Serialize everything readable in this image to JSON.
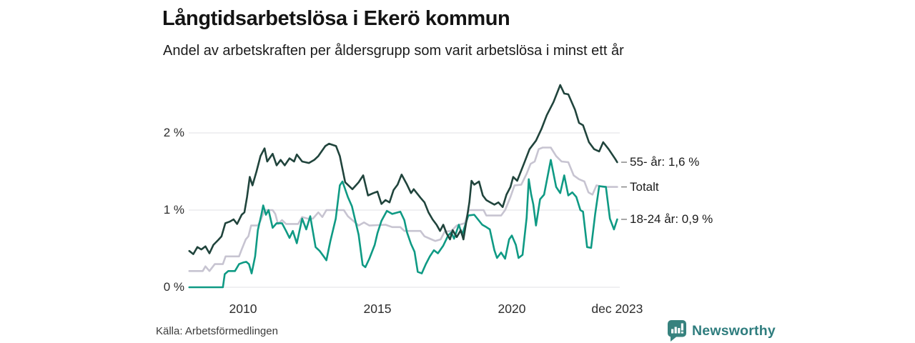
{
  "header": {
    "title": "Långtidsarbetslösa i Ekerö kommun",
    "subtitle": "Andel av arbetskraften per åldersgrupp som varit arbetslösa i minst ett år"
  },
  "footer": {
    "source": "Källa: Arbetsförmedlingen",
    "brand": "Newsworthy",
    "brand_color": "#2f7d7e",
    "brand_icon": "newsworthy-speech-bubble-bar-chart"
  },
  "chart_data": {
    "type": "line",
    "title": "Långtidsarbetslösa i Ekerö kommun",
    "subtitle": "Andel av arbetskraften per åldersgrupp som varit arbetslösa i minst ett år",
    "xlabel": "",
    "ylabel": "",
    "x_unit": "year (monthly data)",
    "y_unit": "percent of labour force",
    "x_range": [
      2008.0,
      2023.92
    ],
    "ylim": [
      0,
      2.7
    ],
    "grid": "horizontal",
    "grid_color": "#e6e6e9",
    "end_tick_color": "#808080",
    "legend_position": "right-edge-labels",
    "yticks": [
      {
        "value": 0,
        "label": "0 %"
      },
      {
        "value": 1,
        "label": "1 %"
      },
      {
        "value": 2,
        "label": "2 %"
      }
    ],
    "xticks": [
      {
        "value": 2010,
        "label": "2010"
      },
      {
        "value": 2015,
        "label": "2015"
      },
      {
        "value": 2020,
        "label": "2020"
      },
      {
        "value": 2023.92,
        "label": "dec 2023"
      }
    ],
    "series": [
      {
        "id": "55-ar",
        "name": "55- år",
        "end_label": "55- år: 1,6 %",
        "end_value": 1.6,
        "color": "#20443c",
        "z": 3,
        "points": [
          [
            2008.0,
            0.47
          ],
          [
            2008.15,
            0.43
          ],
          [
            2008.3,
            0.52
          ],
          [
            2008.45,
            0.49
          ],
          [
            2008.6,
            0.53
          ],
          [
            2008.75,
            0.44
          ],
          [
            2008.9,
            0.55
          ],
          [
            2009.07,
            0.61
          ],
          [
            2009.2,
            0.66
          ],
          [
            2009.34,
            0.83
          ],
          [
            2009.5,
            0.85
          ],
          [
            2009.65,
            0.88
          ],
          [
            2009.78,
            0.82
          ],
          [
            2009.95,
            0.94
          ],
          [
            2010.05,
            0.97
          ],
          [
            2010.15,
            1.17
          ],
          [
            2010.25,
            1.43
          ],
          [
            2010.35,
            1.32
          ],
          [
            2010.5,
            1.5
          ],
          [
            2010.65,
            1.7
          ],
          [
            2010.8,
            1.8
          ],
          [
            2010.9,
            1.63
          ],
          [
            2011.1,
            1.73
          ],
          [
            2011.25,
            1.58
          ],
          [
            2011.4,
            1.65
          ],
          [
            2011.55,
            1.58
          ],
          [
            2011.73,
            1.67
          ],
          [
            2011.9,
            1.63
          ],
          [
            2012.0,
            1.72
          ],
          [
            2012.2,
            1.63
          ],
          [
            2012.45,
            1.61
          ],
          [
            2012.65,
            1.65
          ],
          [
            2012.8,
            1.7
          ],
          [
            2013.06,
            1.83
          ],
          [
            2013.2,
            1.86
          ],
          [
            2013.46,
            1.83
          ],
          [
            2013.6,
            1.7
          ],
          [
            2013.8,
            1.36
          ],
          [
            2014.07,
            1.27
          ],
          [
            2014.3,
            1.36
          ],
          [
            2014.47,
            1.45
          ],
          [
            2014.65,
            1.19
          ],
          [
            2014.85,
            1.22
          ],
          [
            2015.0,
            1.24
          ],
          [
            2015.15,
            1.08
          ],
          [
            2015.3,
            1.13
          ],
          [
            2015.45,
            1.1
          ],
          [
            2015.6,
            1.26
          ],
          [
            2015.75,
            1.33
          ],
          [
            2015.9,
            1.46
          ],
          [
            2016.1,
            1.33
          ],
          [
            2016.25,
            1.22
          ],
          [
            2016.35,
            1.27
          ],
          [
            2016.6,
            1.16
          ],
          [
            2016.75,
            1.1
          ],
          [
            2016.9,
            0.97
          ],
          [
            2017.05,
            0.88
          ],
          [
            2017.2,
            0.81
          ],
          [
            2017.33,
            0.73
          ],
          [
            2017.45,
            0.81
          ],
          [
            2017.57,
            0.7
          ],
          [
            2017.7,
            0.62
          ],
          [
            2017.8,
            0.74
          ],
          [
            2017.95,
            0.65
          ],
          [
            2018.1,
            0.74
          ],
          [
            2018.2,
            0.62
          ],
          [
            2018.33,
            0.9
          ],
          [
            2018.42,
            1.1
          ],
          [
            2018.5,
            1.38
          ],
          [
            2018.6,
            1.33
          ],
          [
            2018.78,
            1.37
          ],
          [
            2018.92,
            1.19
          ],
          [
            2019.05,
            1.13
          ],
          [
            2019.2,
            1.1
          ],
          [
            2019.35,
            1.07
          ],
          [
            2019.5,
            1.1
          ],
          [
            2019.66,
            1.04
          ],
          [
            2019.8,
            1.2
          ],
          [
            2019.95,
            1.3
          ],
          [
            2020.05,
            1.43
          ],
          [
            2020.2,
            1.38
          ],
          [
            2020.45,
            1.6
          ],
          [
            2020.66,
            1.79
          ],
          [
            2020.9,
            1.9
          ],
          [
            2021.1,
            2.05
          ],
          [
            2021.3,
            2.23
          ],
          [
            2021.55,
            2.4
          ],
          [
            2021.8,
            2.62
          ],
          [
            2021.95,
            2.51
          ],
          [
            2022.1,
            2.5
          ],
          [
            2022.35,
            2.3
          ],
          [
            2022.5,
            2.13
          ],
          [
            2022.65,
            2.1
          ],
          [
            2022.87,
            1.88
          ],
          [
            2023.06,
            1.79
          ],
          [
            2023.25,
            1.76
          ],
          [
            2023.4,
            1.88
          ],
          [
            2023.6,
            1.79
          ],
          [
            2023.85,
            1.66
          ],
          [
            2023.92,
            1.62
          ]
        ]
      },
      {
        "id": "totalt",
        "name": "Totalt",
        "end_label": "Totalt",
        "end_value": 1.3,
        "color": "#c7c4d1",
        "z": 1,
        "points": [
          [
            2008.0,
            0.21
          ],
          [
            2008.3,
            0.21
          ],
          [
            2008.5,
            0.21
          ],
          [
            2008.6,
            0.27
          ],
          [
            2008.75,
            0.21
          ],
          [
            2008.95,
            0.3
          ],
          [
            2009.25,
            0.3
          ],
          [
            2009.35,
            0.4
          ],
          [
            2009.85,
            0.4
          ],
          [
            2009.95,
            0.49
          ],
          [
            2010.1,
            0.62
          ],
          [
            2010.2,
            0.66
          ],
          [
            2010.3,
            0.8
          ],
          [
            2010.55,
            0.8
          ],
          [
            2010.65,
            0.86
          ],
          [
            2010.8,
            1.0
          ],
          [
            2011.1,
            1.0
          ],
          [
            2011.2,
            0.95
          ],
          [
            2011.3,
            0.82
          ],
          [
            2011.45,
            0.87
          ],
          [
            2011.6,
            0.82
          ],
          [
            2012.05,
            0.82
          ],
          [
            2012.2,
            0.91
          ],
          [
            2012.4,
            0.89
          ],
          [
            2012.6,
            0.89
          ],
          [
            2012.8,
            0.97
          ],
          [
            2012.95,
            0.91
          ],
          [
            2013.1,
            1.0
          ],
          [
            2013.75,
            1.0
          ],
          [
            2013.9,
            0.92
          ],
          [
            2014.1,
            0.86
          ],
          [
            2014.3,
            0.8
          ],
          [
            2014.5,
            0.84
          ],
          [
            2014.7,
            0.8
          ],
          [
            2015.3,
            0.81
          ],
          [
            2015.55,
            0.78
          ],
          [
            2015.85,
            0.78
          ],
          [
            2016.0,
            0.73
          ],
          [
            2016.6,
            0.73
          ],
          [
            2016.75,
            0.66
          ],
          [
            2016.95,
            0.63
          ],
          [
            2017.15,
            0.6
          ],
          [
            2017.35,
            0.62
          ],
          [
            2017.5,
            0.72
          ],
          [
            2017.75,
            0.73
          ],
          [
            2017.95,
            0.8
          ],
          [
            2018.25,
            0.83
          ],
          [
            2018.4,
            1.0
          ],
          [
            2018.95,
            1.0
          ],
          [
            2019.05,
            0.93
          ],
          [
            2019.6,
            0.93
          ],
          [
            2019.75,
            1.0
          ],
          [
            2019.95,
            1.17
          ],
          [
            2020.1,
            1.32
          ],
          [
            2020.35,
            1.33
          ],
          [
            2020.55,
            1.47
          ],
          [
            2020.7,
            1.6
          ],
          [
            2020.85,
            1.63
          ],
          [
            2021.0,
            1.79
          ],
          [
            2021.15,
            1.81
          ],
          [
            2021.45,
            1.81
          ],
          [
            2021.65,
            1.7
          ],
          [
            2021.85,
            1.63
          ],
          [
            2022.1,
            1.62
          ],
          [
            2022.3,
            1.45
          ],
          [
            2022.5,
            1.4
          ],
          [
            2022.7,
            1.37
          ],
          [
            2022.85,
            1.23
          ],
          [
            2023.0,
            1.2
          ],
          [
            2023.15,
            1.32
          ],
          [
            2023.4,
            1.3
          ],
          [
            2023.92,
            1.3
          ]
        ]
      },
      {
        "id": "18-24-ar",
        "name": "18-24 år",
        "end_label": "18-24 år: 0,9 %",
        "end_value": 0.9,
        "color": "#0f9a84",
        "z": 2,
        "points": [
          [
            2008.0,
            0.0
          ],
          [
            2009.25,
            0.0
          ],
          [
            2009.32,
            0.17
          ],
          [
            2009.45,
            0.21
          ],
          [
            2009.7,
            0.21
          ],
          [
            2009.85,
            0.3
          ],
          [
            2010.0,
            0.32
          ],
          [
            2010.12,
            0.33
          ],
          [
            2010.22,
            0.3
          ],
          [
            2010.32,
            0.18
          ],
          [
            2010.45,
            0.4
          ],
          [
            2010.55,
            0.74
          ],
          [
            2010.68,
            0.94
          ],
          [
            2010.75,
            1.06
          ],
          [
            2010.85,
            0.94
          ],
          [
            2010.95,
            1.0
          ],
          [
            2011.1,
            0.77
          ],
          [
            2011.25,
            0.83
          ],
          [
            2011.45,
            0.83
          ],
          [
            2011.6,
            0.73
          ],
          [
            2011.73,
            0.64
          ],
          [
            2011.85,
            0.73
          ],
          [
            2012.0,
            0.57
          ],
          [
            2012.2,
            0.89
          ],
          [
            2012.35,
            0.75
          ],
          [
            2012.5,
            0.92
          ],
          [
            2012.7,
            0.52
          ],
          [
            2012.85,
            0.47
          ],
          [
            2013.0,
            0.4
          ],
          [
            2013.1,
            0.35
          ],
          [
            2013.25,
            0.6
          ],
          [
            2013.45,
            0.89
          ],
          [
            2013.6,
            1.32
          ],
          [
            2013.7,
            1.37
          ],
          [
            2013.9,
            1.17
          ],
          [
            2014.05,
            1.05
          ],
          [
            2014.3,
            0.68
          ],
          [
            2014.45,
            0.29
          ],
          [
            2014.55,
            0.26
          ],
          [
            2014.7,
            0.37
          ],
          [
            2014.9,
            0.55
          ],
          [
            2015.0,
            0.7
          ],
          [
            2015.15,
            0.86
          ],
          [
            2015.35,
            0.99
          ],
          [
            2015.55,
            0.95
          ],
          [
            2015.85,
            0.98
          ],
          [
            2016.0,
            0.87
          ],
          [
            2016.1,
            0.71
          ],
          [
            2016.25,
            0.56
          ],
          [
            2016.38,
            0.46
          ],
          [
            2016.5,
            0.2
          ],
          [
            2016.65,
            0.18
          ],
          [
            2016.8,
            0.3
          ],
          [
            2016.95,
            0.4
          ],
          [
            2017.1,
            0.48
          ],
          [
            2017.25,
            0.44
          ],
          [
            2017.45,
            0.54
          ],
          [
            2017.63,
            0.67
          ],
          [
            2017.75,
            0.71
          ],
          [
            2017.85,
            0.63
          ],
          [
            2018.03,
            0.81
          ],
          [
            2018.15,
            0.68
          ],
          [
            2018.38,
            0.93
          ],
          [
            2018.6,
            0.94
          ],
          [
            2018.9,
            0.81
          ],
          [
            2019.05,
            0.78
          ],
          [
            2019.18,
            0.75
          ],
          [
            2019.35,
            0.48
          ],
          [
            2019.45,
            0.38
          ],
          [
            2019.6,
            0.45
          ],
          [
            2019.75,
            0.37
          ],
          [
            2019.9,
            0.62
          ],
          [
            2020.0,
            0.67
          ],
          [
            2020.15,
            0.55
          ],
          [
            2020.25,
            0.38
          ],
          [
            2020.4,
            0.42
          ],
          [
            2020.55,
            0.9
          ],
          [
            2020.63,
            1.4
          ],
          [
            2020.72,
            1.2
          ],
          [
            2020.8,
            1.07
          ],
          [
            2020.9,
            0.8
          ],
          [
            2021.05,
            1.14
          ],
          [
            2021.2,
            1.2
          ],
          [
            2021.45,
            1.65
          ],
          [
            2021.65,
            1.3
          ],
          [
            2021.8,
            1.22
          ],
          [
            2021.95,
            1.45
          ],
          [
            2022.1,
            1.19
          ],
          [
            2022.25,
            1.23
          ],
          [
            2022.4,
            1.17
          ],
          [
            2022.55,
            1.0
          ],
          [
            2022.65,
            0.98
          ],
          [
            2022.8,
            0.52
          ],
          [
            2022.95,
            0.51
          ],
          [
            2023.1,
            0.95
          ],
          [
            2023.25,
            1.31
          ],
          [
            2023.5,
            1.3
          ],
          [
            2023.65,
            0.89
          ],
          [
            2023.8,
            0.75
          ],
          [
            2023.92,
            0.88
          ]
        ]
      }
    ]
  }
}
